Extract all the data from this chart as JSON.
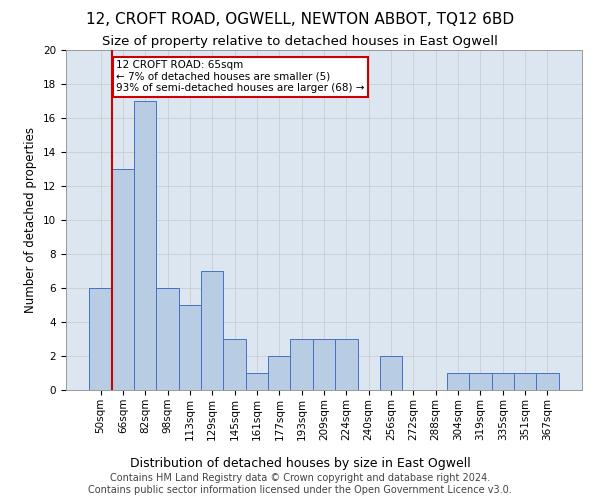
{
  "title": "12, CROFT ROAD, OGWELL, NEWTON ABBOT, TQ12 6BD",
  "subtitle": "Size of property relative to detached houses in East Ogwell",
  "xlabel": "Distribution of detached houses by size in East Ogwell",
  "ylabel": "Number of detached properties",
  "footer_line1": "Contains HM Land Registry data © Crown copyright and database right 2024.",
  "footer_line2": "Contains public sector information licensed under the Open Government Licence v3.0.",
  "categories": [
    "50sqm",
    "66sqm",
    "82sqm",
    "98sqm",
    "113sqm",
    "129sqm",
    "145sqm",
    "161sqm",
    "177sqm",
    "193sqm",
    "209sqm",
    "224sqm",
    "240sqm",
    "256sqm",
    "272sqm",
    "288sqm",
    "304sqm",
    "319sqm",
    "335sqm",
    "351sqm",
    "367sqm"
  ],
  "values": [
    6,
    13,
    17,
    6,
    5,
    7,
    3,
    1,
    2,
    3,
    3,
    3,
    0,
    2,
    0,
    0,
    1,
    1,
    1,
    1,
    1
  ],
  "bar_color": "#b8cce4",
  "bar_edge_color": "#4472c4",
  "annotation_text": "12 CROFT ROAD: 65sqm\n← 7% of detached houses are smaller (5)\n93% of semi-detached houses are larger (68) →",
  "annotation_box_color": "#ffffff",
  "annotation_box_edge": "#cc0000",
  "vline_color": "#cc0000",
  "ylim": [
    0,
    20
  ],
  "yticks": [
    0,
    2,
    4,
    6,
    8,
    10,
    12,
    14,
    16,
    18,
    20
  ],
  "grid_color": "#cccccc",
  "bg_color": "#dce6f1",
  "title_fontsize": 11,
  "subtitle_fontsize": 9.5,
  "xlabel_fontsize": 9,
  "ylabel_fontsize": 8.5,
  "tick_fontsize": 7.5,
  "footer_fontsize": 7,
  "annot_fontsize": 7.5
}
